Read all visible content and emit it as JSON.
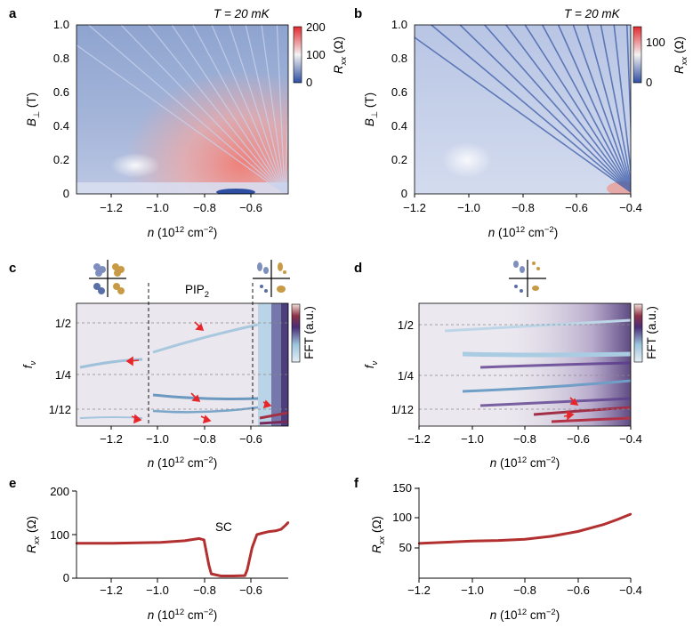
{
  "panels": {
    "a": {
      "label": "a",
      "annotation": "T = 20 mK",
      "xlabel": "n (10^12 cm^-2)",
      "ylabel": "B_⊥ (T)",
      "xticks": [
        "−1.2",
        "−1.0",
        "−0.8",
        "−0.6"
      ],
      "yticks": [
        "0",
        "0.2",
        "0.4",
        "0.6",
        "0.8",
        "1.0"
      ],
      "colorbar_label": "R_xx (Ω)",
      "colorbar_ticks": [
        "200",
        "100",
        "0"
      ]
    },
    "b": {
      "label": "b",
      "annotation": "T = 20 mK",
      "xlabel": "n (10^12 cm^-2)",
      "ylabel": "B_⊥ (T)",
      "xticks": [
        "−1.2",
        "−1.0",
        "−0.8",
        "−0.6",
        "−0.4"
      ],
      "yticks": [
        "0",
        "0.2",
        "0.4",
        "0.6",
        "0.8",
        "1.0"
      ],
      "colorbar_label": "R_xx (Ω)",
      "colorbar_ticks": [
        "100",
        "0"
      ]
    },
    "c": {
      "label": "c",
      "region_label": "PIP2",
      "xlabel": "n (10^12 cm^-2)",
      "ylabel": "f_ν",
      "xticks": [
        "−1.2",
        "−1.0",
        "−0.8",
        "−0.6"
      ],
      "yticks": [
        "1/2",
        "1/4",
        "1/12"
      ],
      "colorbar_label": "FFT (a.u.)"
    },
    "d": {
      "label": "d",
      "xlabel": "n (10^12 cm^-2)",
      "ylabel": "f_ν",
      "xticks": [
        "−1.2",
        "−1.0",
        "−0.8",
        "−0.6",
        "−0.4"
      ],
      "yticks": [
        "1/2",
        "1/4",
        "1/12"
      ],
      "colorbar_label": "FFT (a.u.)"
    },
    "e": {
      "label": "e",
      "annotation": "SC",
      "xlabel": "n (10^12 cm^-2)",
      "ylabel": "R_xx (Ω)",
      "xticks": [
        "−1.2",
        "−1.0",
        "−0.8",
        "−0.6"
      ],
      "yticks": [
        "0",
        "100",
        "200"
      ]
    },
    "f": {
      "label": "f",
      "xlabel": "n (10^12 cm^-2)",
      "ylabel": "R_xx (Ω)",
      "xticks": [
        "−1.2",
        "−1.0",
        "−0.8",
        "−0.6",
        "−0.4"
      ],
      "yticks": [
        "50",
        "100",
        "150"
      ]
    }
  },
  "chart_data": [
    {
      "panel": "e",
      "type": "line",
      "series_color": "#b23030",
      "xlim": [
        -1.35,
        -0.47
      ],
      "ylim": [
        0,
        200
      ],
      "x": [
        -1.35,
        -1.3,
        -1.2,
        -1.1,
        -1.0,
        -0.9,
        -0.84,
        -0.82,
        -0.8,
        -0.79,
        -0.75,
        -0.7,
        -0.65,
        -0.64,
        -0.62,
        -0.6,
        -0.58,
        -0.55,
        -0.52,
        -0.5,
        -0.48,
        -0.47
      ],
      "y": [
        80,
        80,
        80,
        81,
        82,
        86,
        91,
        88,
        30,
        10,
        5,
        5,
        6,
        20,
        70,
        100,
        103,
        107,
        109,
        112,
        122,
        128
      ]
    },
    {
      "panel": "f",
      "type": "line",
      "series_color": "#b23030",
      "xlim": [
        -1.2,
        -0.4
      ],
      "ylim": [
        0,
        150
      ],
      "x": [
        -1.2,
        -1.1,
        -1.0,
        -0.9,
        -0.8,
        -0.7,
        -0.6,
        -0.5,
        -0.45,
        -0.4
      ],
      "y": [
        58,
        60,
        62,
        63,
        65,
        70,
        78,
        90,
        98,
        107
      ]
    }
  ]
}
